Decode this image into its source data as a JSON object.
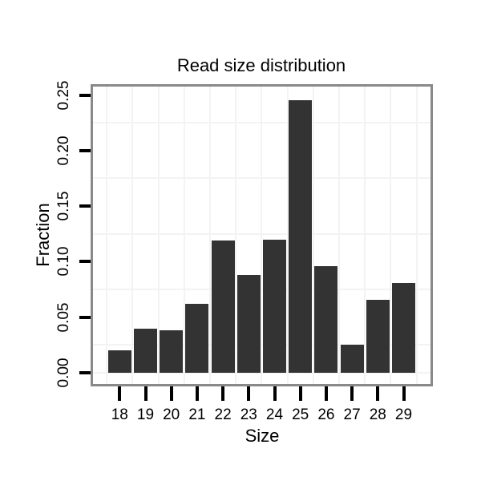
{
  "chart_data": {
    "type": "bar",
    "title": "Read size distribution",
    "xlabel": "Size",
    "ylabel": "Fraction",
    "categories": [
      "18",
      "19",
      "20",
      "21",
      "22",
      "23",
      "24",
      "25",
      "26",
      "27",
      "28",
      "29"
    ],
    "values": [
      0.02,
      0.04,
      0.038,
      0.062,
      0.119,
      0.088,
      0.12,
      0.245,
      0.096,
      0.025,
      0.066,
      0.081
    ],
    "ylim": [
      0,
      0.25
    ],
    "y_tick_labels": [
      "0.00",
      "0.05",
      "0.10",
      "0.15",
      "0.20",
      "0.25"
    ],
    "y_tick_values": [
      0,
      0.05,
      0.1,
      0.15,
      0.2,
      0.25
    ],
    "minor_gridline_values": [
      0,
      0.025,
      0.075,
      0.125,
      0.175,
      0.225
    ],
    "legend_position": "none",
    "grid": "faint minor gridlines only; vertical gridlines between categories",
    "colors": {
      "bar": "#333333",
      "panel_border": "#898989",
      "gridline": "#f3f3f3",
      "tick": "#000000",
      "text": "#000000",
      "background": "#ffffff"
    }
  }
}
